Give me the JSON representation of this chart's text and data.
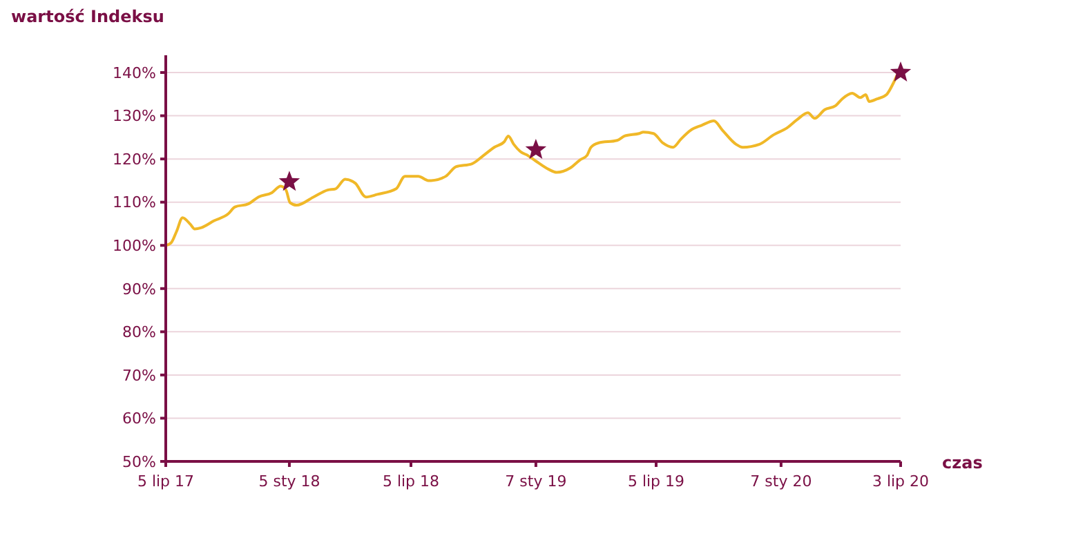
{
  "chart_data": {
    "type": "line",
    "xlabel": "czas",
    "ylabel": "wartość Indeksu",
    "grid": "y",
    "xlim": [
      "2017-07-05",
      "2020-07-03"
    ],
    "ylim": [
      50,
      144
    ],
    "xticks": [
      {
        "value": "2017-07-05",
        "label": "5 lip 17"
      },
      {
        "value": "2018-01-05",
        "label": "5 sty 18"
      },
      {
        "value": "2018-07-05",
        "label": "5 lip 18"
      },
      {
        "value": "2019-01-07",
        "label": "7 sty 19"
      },
      {
        "value": "2019-07-05",
        "label": "5 lip 19"
      },
      {
        "value": "2020-01-07",
        "label": "7 sty 20"
      },
      {
        "value": "2020-07-03",
        "label": "3 lip 20"
      }
    ],
    "yticks": [
      {
        "value": 50,
        "label": "50%"
      },
      {
        "value": 60,
        "label": "60%"
      },
      {
        "value": 70,
        "label": "70%"
      },
      {
        "value": 80,
        "label": "80%"
      },
      {
        "value": 90,
        "label": "90%"
      },
      {
        "value": 100,
        "label": "100%"
      },
      {
        "value": 110,
        "label": "110%"
      },
      {
        "value": 120,
        "label": "120%"
      },
      {
        "value": 130,
        "label": "130%"
      },
      {
        "value": 140,
        "label": "140%"
      }
    ],
    "series": [
      {
        "color": "#f0b828",
        "marker": "none",
        "x": [
          "2017-07-05",
          "2017-07-13",
          "2017-07-21",
          "2017-07-30",
          "2017-08-11",
          "2017-08-17",
          "2017-08-27",
          "2017-09-15",
          "2017-10-06",
          "2017-10-16",
          "2017-11-05",
          "2017-11-20",
          "2017-12-10",
          "2017-12-23",
          "2017-12-31",
          "2018-01-06",
          "2018-01-16",
          "2018-02-10",
          "2018-03-03",
          "2018-03-15",
          "2018-03-29",
          "2018-04-13",
          "2018-04-29",
          "2018-05-16",
          "2018-06-13",
          "2018-06-26",
          "2018-07-16",
          "2018-07-31",
          "2018-08-04",
          "2018-08-26",
          "2018-09-10",
          "2018-10-04",
          "2018-10-21",
          "2018-11-06",
          "2018-11-21",
          "2018-11-27",
          "2018-12-05",
          "2018-12-15",
          "2018-12-26",
          "2019-01-07",
          "2019-01-26",
          "2019-02-07",
          "2019-02-27",
          "2019-03-14",
          "2019-03-24",
          "2019-03-30",
          "2019-04-10",
          "2019-05-08",
          "2019-05-19",
          "2019-06-10",
          "2019-06-16",
          "2019-07-01",
          "2019-07-15",
          "2019-07-30",
          "2019-08-11",
          "2019-08-25",
          "2019-09-11",
          "2019-09-29",
          "2019-10-12",
          "2019-11-01",
          "2019-11-11",
          "2019-12-06",
          "2019-12-27",
          "2020-01-16",
          "2020-01-31",
          "2020-02-16",
          "2020-02-26",
          "2020-03-12",
          "2020-03-28",
          "2020-04-07",
          "2020-04-22",
          "2020-05-04",
          "2020-05-12",
          "2020-05-17",
          "2020-05-29",
          "2020-06-12",
          "2020-06-23",
          "2020-06-29",
          "2020-07-03"
        ],
        "values": [
          100.0,
          100.6,
          103.2,
          106.4,
          104.8,
          103.8,
          104.1,
          105.7,
          107.3,
          108.9,
          109.6,
          111.2,
          112.2,
          113.7,
          112.8,
          109.9,
          109.3,
          111.2,
          112.8,
          113.1,
          115.3,
          114.4,
          111.2,
          111.8,
          113.1,
          116.0,
          116.0,
          115.0,
          115.0,
          116.0,
          118.2,
          118.9,
          120.8,
          122.7,
          124.0,
          125.3,
          123.4,
          121.7,
          120.8,
          119.5,
          117.6,
          116.9,
          117.9,
          119.8,
          120.8,
          122.7,
          123.7,
          124.3,
          125.3,
          125.9,
          126.2,
          125.9,
          123.7,
          122.7,
          124.6,
          126.6,
          127.8,
          128.8,
          126.6,
          123.4,
          122.7,
          123.4,
          125.6,
          127.2,
          129.1,
          130.7,
          129.4,
          131.4,
          132.3,
          133.9,
          135.2,
          134.2,
          134.9,
          133.3,
          133.9,
          134.9,
          137.8,
          139.7,
          140.0
        ]
      },
      {
        "type": "scatter",
        "color": "#7a0f45",
        "marker": "star",
        "x": [
          "2018-01-05",
          "2019-01-07",
          "2020-07-03"
        ],
        "values": [
          114.7,
          122.1,
          140.0
        ]
      }
    ]
  }
}
